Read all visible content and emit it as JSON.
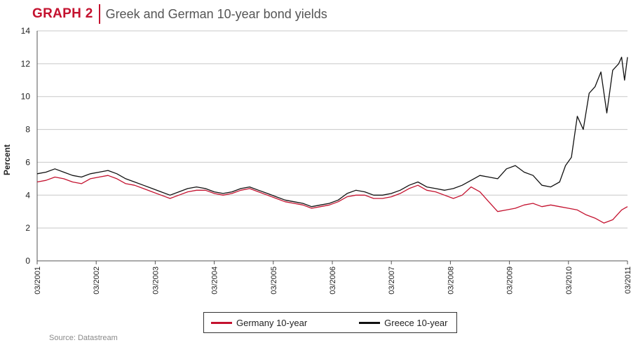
{
  "header": {
    "graph_label": "GRAPH 2",
    "title": "Greek and German 10-year bond yields"
  },
  "source": "Source: Datastream",
  "colors": {
    "germany": "#c4122f",
    "greece": "#111111",
    "accent": "#c4122f",
    "grid": "#c8c8c8"
  },
  "chart_data": {
    "type": "line",
    "ylabel": "Percent",
    "xlabel": "",
    "ylim": [
      0,
      14
    ],
    "yticks": [
      0,
      2,
      4,
      6,
      8,
      10,
      12,
      14
    ],
    "xlim": [
      2001.0,
      2011.0
    ],
    "xtick_labels": [
      "03/2001",
      "03/2002",
      "03/2003",
      "03/2004",
      "03/2005",
      "03/2006",
      "03/2007",
      "03/2008",
      "03/2009",
      "03/2010",
      "03/2011"
    ],
    "grid": "horizontal",
    "legend_position": "bottom-center",
    "series": [
      {
        "name": "Germany 10-year",
        "color": "#c4122f",
        "x": [
          2001.0,
          2001.15,
          2001.3,
          2001.45,
          2001.6,
          2001.75,
          2001.9,
          2002.05,
          2002.2,
          2002.35,
          2002.5,
          2002.65,
          2002.8,
          2002.95,
          2003.1,
          2003.25,
          2003.4,
          2003.55,
          2003.7,
          2003.85,
          2004.0,
          2004.15,
          2004.3,
          2004.45,
          2004.6,
          2004.75,
          2004.9,
          2005.05,
          2005.2,
          2005.35,
          2005.5,
          2005.65,
          2005.8,
          2005.95,
          2006.1,
          2006.25,
          2006.4,
          2006.55,
          2006.7,
          2006.85,
          2007.0,
          2007.15,
          2007.3,
          2007.45,
          2007.6,
          2007.75,
          2007.9,
          2008.05,
          2008.2,
          2008.35,
          2008.5,
          2008.65,
          2008.8,
          2008.95,
          2009.1,
          2009.25,
          2009.4,
          2009.55,
          2009.7,
          2009.85,
          2010.0,
          2010.15,
          2010.3,
          2010.45,
          2010.6,
          2010.75,
          2010.9,
          2011.0
        ],
        "y": [
          4.8,
          4.9,
          5.1,
          5.0,
          4.8,
          4.7,
          5.0,
          5.1,
          5.2,
          5.0,
          4.7,
          4.6,
          4.4,
          4.2,
          4.0,
          3.8,
          4.0,
          4.2,
          4.3,
          4.3,
          4.1,
          4.0,
          4.1,
          4.3,
          4.4,
          4.2,
          4.0,
          3.8,
          3.6,
          3.5,
          3.4,
          3.2,
          3.3,
          3.4,
          3.6,
          3.9,
          4.0,
          4.0,
          3.8,
          3.8,
          3.9,
          4.1,
          4.4,
          4.6,
          4.3,
          4.2,
          4.0,
          3.8,
          4.0,
          4.5,
          4.2,
          3.6,
          3.0,
          3.1,
          3.2,
          3.4,
          3.5,
          3.3,
          3.4,
          3.3,
          3.2,
          3.1,
          2.8,
          2.6,
          2.3,
          2.5,
          3.1,
          3.3
        ]
      },
      {
        "name": "Greece 10-year",
        "color": "#111111",
        "x": [
          2001.0,
          2001.15,
          2001.3,
          2001.45,
          2001.6,
          2001.75,
          2001.9,
          2002.05,
          2002.2,
          2002.35,
          2002.5,
          2002.65,
          2002.8,
          2002.95,
          2003.1,
          2003.25,
          2003.4,
          2003.55,
          2003.7,
          2003.85,
          2004.0,
          2004.15,
          2004.3,
          2004.45,
          2004.6,
          2004.75,
          2004.9,
          2005.05,
          2005.2,
          2005.35,
          2005.5,
          2005.65,
          2005.8,
          2005.95,
          2006.1,
          2006.25,
          2006.4,
          2006.55,
          2006.7,
          2006.85,
          2007.0,
          2007.15,
          2007.3,
          2007.45,
          2007.6,
          2007.75,
          2007.9,
          2008.05,
          2008.2,
          2008.35,
          2008.5,
          2008.65,
          2008.8,
          2008.95,
          2009.1,
          2009.25,
          2009.4,
          2009.55,
          2009.7,
          2009.85,
          2009.95,
          2010.05,
          2010.15,
          2010.25,
          2010.35,
          2010.45,
          2010.55,
          2010.65,
          2010.75,
          2010.85,
          2010.9,
          2010.95,
          2011.0
        ],
        "y": [
          5.3,
          5.4,
          5.6,
          5.4,
          5.2,
          5.1,
          5.3,
          5.4,
          5.5,
          5.3,
          5.0,
          4.8,
          4.6,
          4.4,
          4.2,
          4.0,
          4.2,
          4.4,
          4.5,
          4.4,
          4.2,
          4.1,
          4.2,
          4.4,
          4.5,
          4.3,
          4.1,
          3.9,
          3.7,
          3.6,
          3.5,
          3.3,
          3.4,
          3.5,
          3.7,
          4.1,
          4.3,
          4.2,
          4.0,
          4.0,
          4.1,
          4.3,
          4.6,
          4.8,
          4.5,
          4.4,
          4.3,
          4.4,
          4.6,
          4.9,
          5.2,
          5.1,
          5.0,
          5.6,
          5.8,
          5.4,
          5.2,
          4.6,
          4.5,
          4.8,
          5.8,
          6.3,
          8.8,
          8.0,
          10.2,
          10.6,
          11.5,
          9.0,
          11.6,
          12.0,
          12.4,
          11.0,
          12.4
        ]
      }
    ]
  }
}
